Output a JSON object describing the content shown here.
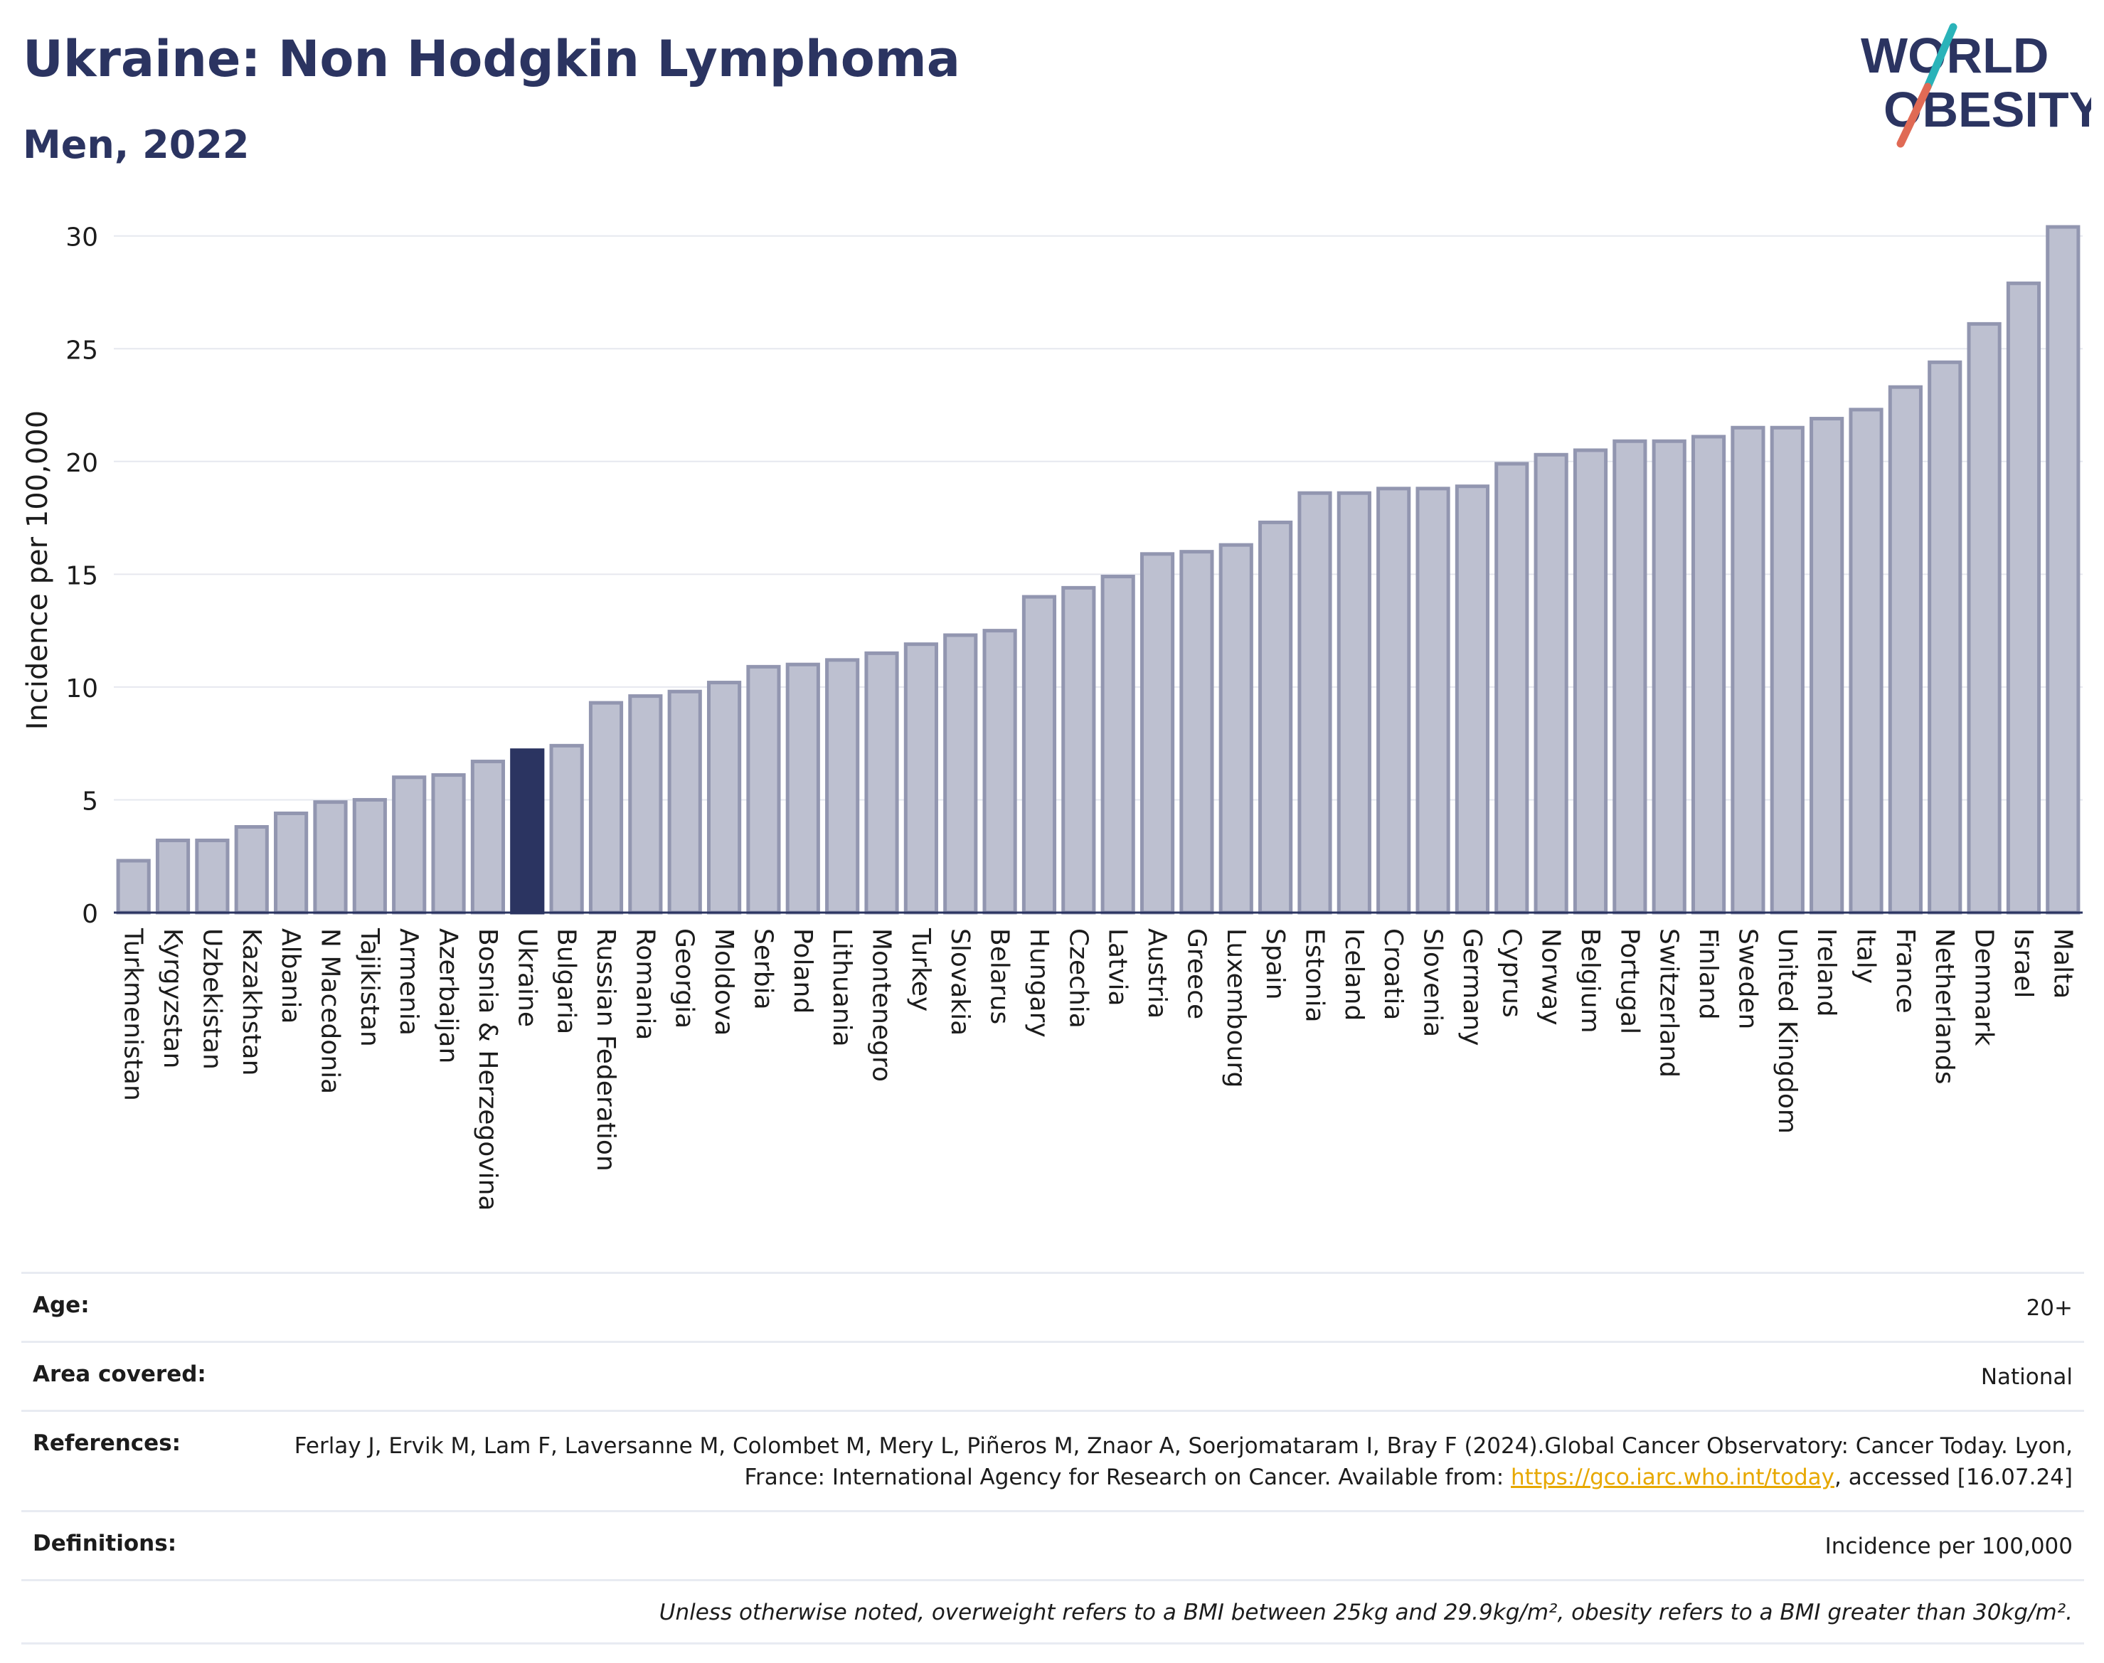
{
  "header": {
    "title": "Ukraine: Non Hodgkin Lymphoma",
    "subtitle": "Men, 2022",
    "logo_line1": "WORLD",
    "logo_line2": "OBESITY"
  },
  "colors": {
    "bar": "#bdc0d0",
    "bar_edge": "#9296b0",
    "highlight": "#2b3461",
    "grid": "#e6e8ef",
    "axis": "#2b3461",
    "link": "#e7a800",
    "logo_slash_top": "#2ab3b9",
    "logo_slash_bottom": "#e06a55"
  },
  "chart_data": {
    "type": "bar",
    "ylabel": "Incidence per 100,000",
    "ylim": [
      0,
      31
    ],
    "yticks": [
      0,
      5,
      10,
      15,
      20,
      25,
      30
    ],
    "grid": true,
    "highlight": "Ukraine",
    "categories": [
      "Turkmenistan",
      "Kyrgyzstan",
      "Uzbekistan",
      "Kazakhstan",
      "Albania",
      "N Macedonia",
      "Tajikistan",
      "Armenia",
      "Azerbaijan",
      "Bosnia & Herzegovina",
      "Ukraine",
      "Bulgaria",
      "Russian Federation",
      "Romania",
      "Georgia",
      "Moldova",
      "Serbia",
      "Poland",
      "Lithuania",
      "Montenegro",
      "Turkey",
      "Slovakia",
      "Belarus",
      "Hungary",
      "Czechia",
      "Latvia",
      "Austria",
      "Greece",
      "Luxembourg",
      "Spain",
      "Estonia",
      "Iceland",
      "Croatia",
      "Slovenia",
      "Germany",
      "Cyprus",
      "Norway",
      "Belgium",
      "Portugal",
      "Switzerland",
      "Finland",
      "Sweden",
      "United Kingdom",
      "Ireland",
      "Italy",
      "France",
      "Netherlands",
      "Denmark",
      "Israel",
      "Malta"
    ],
    "values": [
      2.3,
      3.2,
      3.2,
      3.8,
      4.4,
      4.9,
      5.0,
      6.0,
      6.1,
      6.7,
      7.2,
      7.4,
      9.3,
      9.6,
      9.8,
      10.2,
      10.9,
      11.0,
      11.2,
      11.5,
      11.9,
      12.3,
      12.5,
      14.0,
      14.4,
      14.9,
      15.9,
      16.0,
      16.3,
      17.3,
      18.6,
      18.6,
      18.8,
      18.8,
      18.9,
      19.9,
      20.3,
      20.5,
      20.9,
      20.9,
      21.1,
      21.5,
      21.5,
      21.9,
      22.3,
      23.3,
      24.4,
      26.1,
      27.9,
      30.4
    ]
  },
  "meta": {
    "age_label": "Age:",
    "age_value": "20+",
    "area_label": "Area covered:",
    "area_value": "National",
    "references_label": "References:",
    "references_text_1": "Ferlay J, Ervik M, Lam F, Laversanne M, Colombet M, Mery L, Piñeros M, Znaor A, Soerjomataram I, Bray F (2024).Global Cancer Observatory: Cancer Today. Lyon, France: International Agency for Research on Cancer. Available from: ",
    "references_link": "https://gco.iarc.who.int/today",
    "references_text_2": ", accessed [16.07.24]",
    "definitions_label": "Definitions:",
    "definitions_value": "Incidence per 100,000",
    "note": "Unless otherwise noted, overweight refers to a BMI between 25kg and 29.9kg/m², obesity refers to a BMI greater than 30kg/m²."
  }
}
